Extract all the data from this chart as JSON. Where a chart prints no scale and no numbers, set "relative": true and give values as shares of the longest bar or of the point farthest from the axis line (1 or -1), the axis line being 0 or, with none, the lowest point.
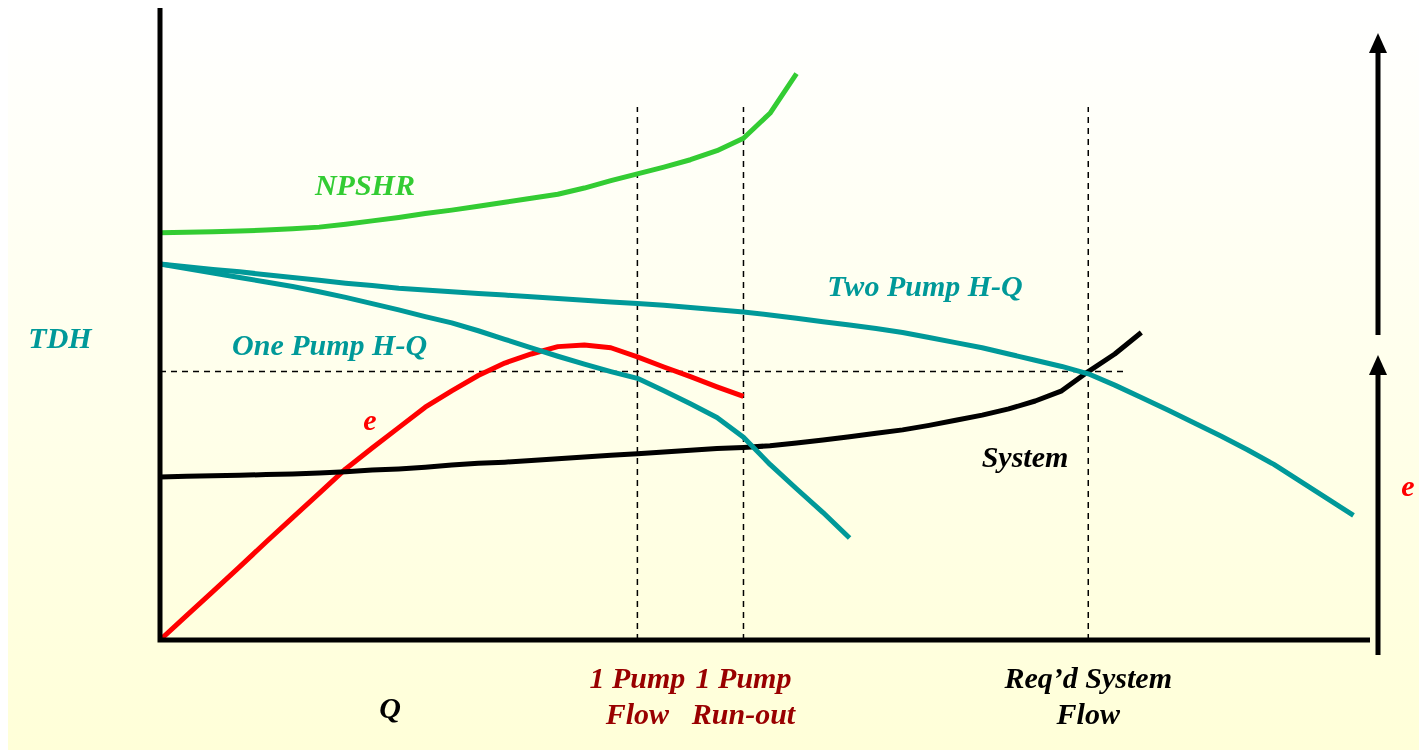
{
  "chart_data": {
    "type": "line",
    "relative": true,
    "xlabel": "Q",
    "ylabel": "TDH",
    "y2label": "e",
    "marker": "none",
    "line_style": "solid",
    "categories": [
      null,
      null,
      null,
      null,
      null,
      null,
      null,
      null,
      null,
      null,
      null,
      null,
      null,
      null,
      null,
      null,
      null,
      null,
      "1 Pump Flow",
      null,
      null,
      null,
      "1 Pump Run-out",
      null,
      null,
      null,
      null,
      null,
      null,
      null,
      null,
      null,
      null,
      null,
      null,
      "Req’d System Flow",
      null,
      null,
      null,
      null,
      null,
      null,
      null,
      null,
      null,
      null,
      null
    ],
    "series": [
      {
        "name": "NPSHR",
        "color": "#33cc33",
        "values": [
          0.719,
          0.72,
          0.721,
          0.722,
          0.724,
          0.726,
          0.729,
          0.734,
          0.74,
          0.746,
          0.753,
          0.759,
          0.766,
          0.773,
          0.78,
          0.787,
          0.798,
          0.811,
          0.823,
          0.835,
          0.848,
          0.864,
          0.886,
          0.93,
          1.0,
          null,
          null,
          null,
          null,
          null,
          null,
          null,
          null,
          null,
          null,
          null,
          null,
          null,
          null,
          null,
          null,
          null,
          null,
          null,
          null,
          null,
          null
        ]
      },
      {
        "name": "One Pump H-Q",
        "color": "#009999",
        "values": [
          0.664,
          0.656,
          0.648,
          0.64,
          0.632,
          0.624,
          0.615,
          0.605,
          0.594,
          0.583,
          0.571,
          0.56,
          0.546,
          0.531,
          0.516,
          0.501,
          0.487,
          0.474,
          0.462,
          0.44,
          0.417,
          0.393,
          0.358,
          0.31,
          0.267,
          0.225,
          0.18,
          null,
          null,
          null,
          null,
          null,
          null,
          null,
          null,
          null,
          null,
          null,
          null,
          null,
          null,
          null,
          null,
          null,
          null,
          null,
          null
        ]
      },
      {
        "name": "Two Pump H-Q",
        "color": "#009999",
        "values": [
          0.664,
          0.659,
          0.654,
          0.65,
          0.645,
          0.64,
          0.635,
          0.63,
          0.626,
          0.621,
          0.618,
          0.615,
          0.612,
          0.609,
          0.606,
          0.603,
          0.6,
          0.597,
          0.594,
          0.591,
          0.587,
          0.583,
          0.579,
          0.574,
          0.568,
          0.562,
          0.556,
          0.55,
          0.543,
          0.534,
          0.525,
          0.516,
          0.505,
          0.494,
          0.483,
          0.47,
          0.45,
          0.428,
          0.406,
          0.383,
          0.36,
          0.336,
          0.31,
          0.28,
          0.25,
          0.22,
          null
        ]
      },
      {
        "name": "System",
        "color": "#000000",
        "values": [
          0.288,
          0.289,
          0.29,
          0.291,
          0.292,
          0.293,
          0.295,
          0.297,
          0.3,
          0.302,
          0.305,
          0.309,
          0.312,
          0.314,
          0.317,
          0.32,
          0.323,
          0.326,
          0.329,
          0.332,
          0.335,
          0.338,
          0.34,
          0.343,
          0.348,
          0.353,
          0.359,
          0.365,
          0.371,
          0.379,
          0.388,
          0.397,
          0.408,
          0.422,
          0.44,
          0.474,
          0.505,
          0.543,
          null,
          null,
          null,
          null,
          null,
          null,
          null,
          null,
          null
        ]
      },
      {
        "name": "e",
        "color": "#ff0000",
        "values": [
          0,
          0.043,
          0.086,
          0.129,
          0.173,
          0.216,
          0.259,
          0.302,
          0.339,
          0.375,
          0.411,
          0.44,
          0.467,
          0.489,
          0.505,
          0.518,
          0.521,
          0.516,
          0.5,
          0.482,
          0.465,
          0.447,
          0.43,
          null,
          null,
          null,
          null,
          null,
          null,
          null,
          null,
          null,
          null,
          null,
          null,
          null,
          null,
          null,
          null,
          null,
          null,
          null,
          null,
          null,
          null,
          null,
          null
        ]
      }
    ],
    "ref_lines": [
      {
        "axis": "x",
        "value": "1 Pump Flow",
        "color": "#000000",
        "line_style": "dashed"
      },
      {
        "axis": "x",
        "value": "1 Pump Run-out",
        "color": "#000000",
        "line_style": "dashed"
      },
      {
        "axis": "x",
        "value": "Req’d System Flow",
        "color": "#000000",
        "line_style": "dashed"
      },
      {
        "axis": "y",
        "value": 0.474,
        "color": "#000000",
        "line_style": "dashed"
      }
    ]
  }
}
